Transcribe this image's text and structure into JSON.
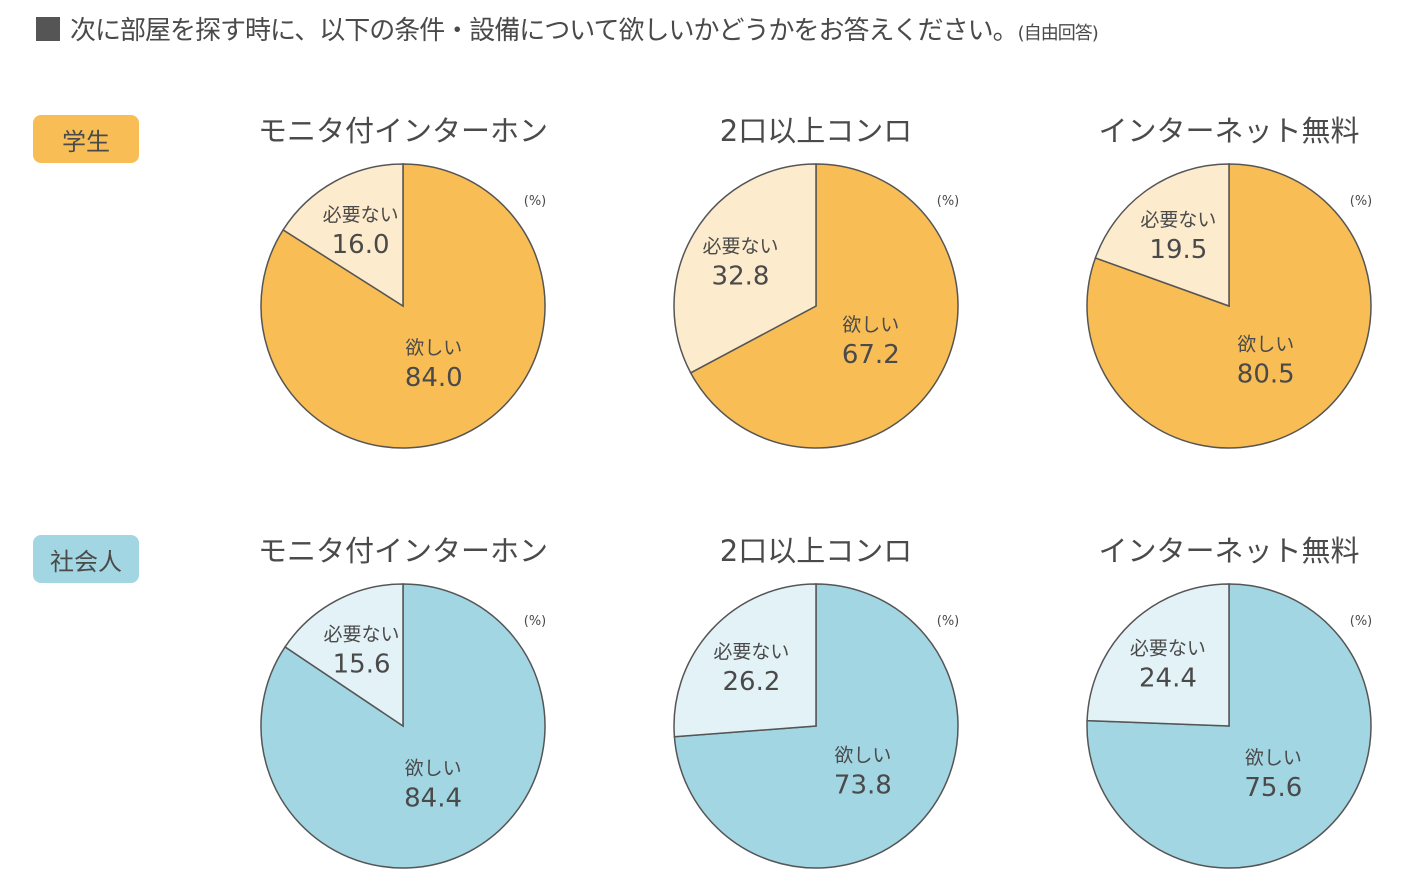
{
  "title": "次に部屋を探す時に、以下の条件・設備について欲しいかどうかをお答えください。",
  "title_note": "(自由回答)",
  "colors": {
    "student_main": "#F8BE55",
    "student_light": "#FDEBCD",
    "worker_main": "#A2D6E3",
    "worker_light": "#E3F2F7",
    "stroke": "#555555"
  },
  "chart_data": [
    {
      "type": "pie",
      "group": "学生",
      "title": "モニタ付インターホン",
      "unit": "(%)",
      "slices": [
        {
          "label": "欲しい",
          "value": 84.0
        },
        {
          "label": "必要ない",
          "value": 16.0
        }
      ]
    },
    {
      "type": "pie",
      "group": "学生",
      "title": "2口以上コンロ",
      "unit": "(%)",
      "slices": [
        {
          "label": "欲しい",
          "value": 67.2
        },
        {
          "label": "必要ない",
          "value": 32.8
        }
      ]
    },
    {
      "type": "pie",
      "group": "学生",
      "title": "インターネット無料",
      "unit": "(%)",
      "slices": [
        {
          "label": "欲しい",
          "value": 80.5
        },
        {
          "label": "必要ない",
          "value": 19.5
        }
      ]
    },
    {
      "type": "pie",
      "group": "社会人",
      "title": "モニタ付インターホン",
      "unit": "(%)",
      "slices": [
        {
          "label": "欲しい",
          "value": 84.4
        },
        {
          "label": "必要ない",
          "value": 15.6
        }
      ]
    },
    {
      "type": "pie",
      "group": "社会人",
      "title": "2口以上コンロ",
      "unit": "(%)",
      "slices": [
        {
          "label": "欲しい",
          "value": 73.8
        },
        {
          "label": "必要ない",
          "value": 26.2
        }
      ]
    },
    {
      "type": "pie",
      "group": "社会人",
      "title": "インターネット無料",
      "unit": "(%)",
      "slices": [
        {
          "label": "欲しい",
          "value": 75.6
        },
        {
          "label": "必要ない",
          "value": 24.4
        }
      ]
    }
  ],
  "groups": [
    "学生",
    "社会人"
  ]
}
